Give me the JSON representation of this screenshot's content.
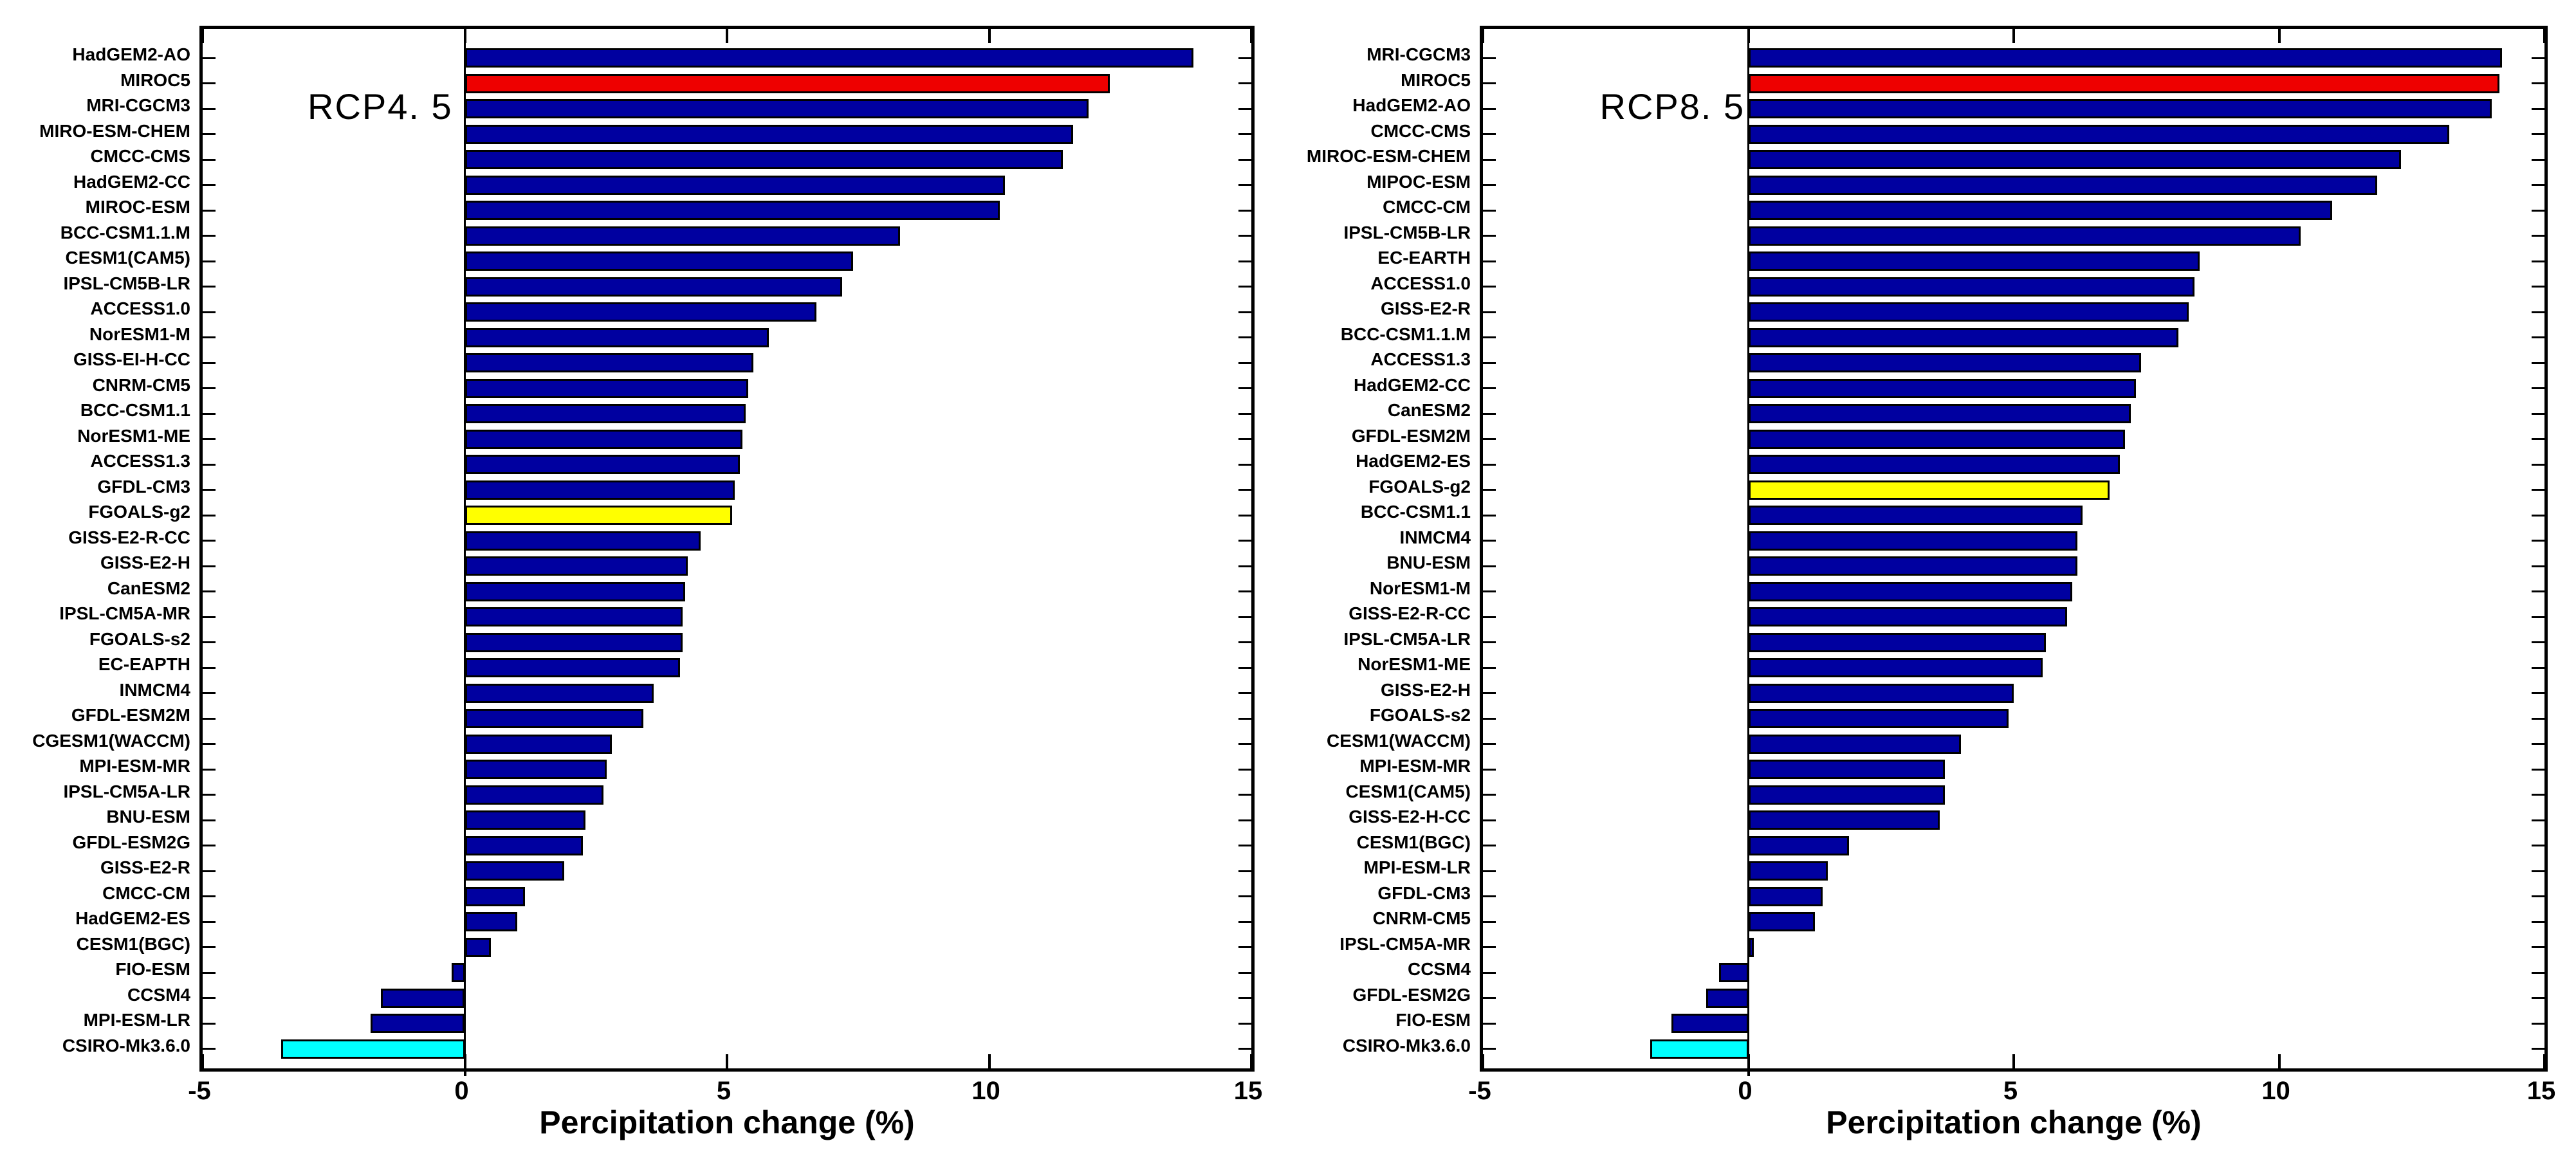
{
  "figure": {
    "background": "#ffffff",
    "bar_default_color": "#0000a0",
    "bar_border_color": "#000000",
    "highlight_colors": {
      "red": "#ee0000",
      "yellow": "#ffff00",
      "cyan": "#00ffff"
    }
  },
  "chart_data": [
    {
      "type": "bar",
      "orientation": "horizontal",
      "title": "RCP4. 5",
      "xlabel": "Percipitation change (%)",
      "xlim": [
        -5,
        15
      ],
      "xticks": [
        -5,
        0,
        5,
        10,
        15
      ],
      "grid": false,
      "legend": "none",
      "categories": [
        "HadGEM2-AO",
        "MIROC5",
        "MRI-CGCM3",
        "MIRO-ESM-CHEM",
        "CMCC-CMS",
        "HadGEM2-CC",
        "MIROC-ESM",
        "BCC-CSM1.1.M",
        "CESM1(CAM5)",
        "IPSL-CM5B-LR",
        "ACCESS1.0",
        "NorESM1-M",
        "GISS-EI-H-CC",
        "CNRM-CM5",
        "BCC-CSM1.1",
        "NorESM1-ME",
        "ACCESS1.3",
        "GFDL-CM3",
        "FGOALS-g2",
        "GISS-E2-R-CC",
        "GISS-E2-H",
        "CanESM2",
        "IPSL-CM5A-MR",
        "FGOALS-s2",
        "EC-EAPTH",
        "INMCM4",
        "GFDL-ESM2M",
        "CGESM1(WACCM)",
        "MPI-ESM-MR",
        "IPSL-CM5A-LR",
        "BNU-ESM",
        "GFDL-ESM2G",
        "GISS-E2-R",
        "CMCC-CM",
        "HadGEM2-ES",
        "CESM1(BGC)",
        "FIO-ESM",
        "CCSM4",
        "MPI-ESM-LR",
        "CSIRO-Mk3.6.0"
      ],
      "values": [
        13.9,
        12.3,
        11.9,
        11.6,
        11.4,
        10.3,
        10.2,
        8.3,
        7.4,
        7.2,
        6.7,
        5.8,
        5.5,
        5.4,
        5.35,
        5.3,
        5.25,
        5.15,
        5.1,
        4.5,
        4.25,
        4.2,
        4.15,
        4.15,
        4.1,
        3.6,
        3.4,
        2.8,
        2.7,
        2.65,
        2.3,
        2.25,
        1.9,
        1.15,
        1.0,
        0.5,
        -0.25,
        -1.6,
        -1.8,
        -3.5
      ],
      "bar_color_overrides": {
        "MIROC5": "#ee0000",
        "FGOALS-g2": "#ffff00",
        "CSIRO-Mk3.6.0": "#00ffff"
      }
    },
    {
      "type": "bar",
      "orientation": "horizontal",
      "title": "RCP8. 5",
      "xlabel": "Percipitation change (%)",
      "xlim": [
        -5,
        15
      ],
      "xticks": [
        -5,
        0,
        5,
        10,
        15
      ],
      "grid": false,
      "legend": "none",
      "categories": [
        "MRI-CGCM3",
        "MIROC5",
        "HadGEM2-AO",
        "CMCC-CMS",
        "MIROC-ESM-CHEM",
        "MIPOC-ESM",
        "CMCC-CM",
        "IPSL-CM5B-LR",
        "EC-EARTH",
        "ACCESS1.0",
        "GISS-E2-R",
        "BCC-CSM1.1.M",
        "ACCESS1.3",
        "HadGEM2-CC",
        "CanESM2",
        "GFDL-ESM2M",
        "HadGEM2-ES",
        "FGOALS-g2",
        "BCC-CSM1.1",
        "INMCM4",
        "BNU-ESM",
        "NorESM1-M",
        "GISS-E2-R-CC",
        "IPSL-CM5A-LR",
        "NorESM1-ME",
        "GISS-E2-H",
        "FGOALS-s2",
        "CESM1(WACCM)",
        "MPI-ESM-MR",
        "CESM1(CAM5)",
        "GISS-E2-H-CC",
        "CESM1(BGC)",
        "MPI-ESM-LR",
        "GFDL-CM3",
        "CNRM-CM5",
        "IPSL-CM5A-MR",
        "CCSM4",
        "GFDL-ESM2G",
        "FIO-ESM",
        "CSIRO-Mk3.6.0"
      ],
      "values": [
        14.2,
        14.15,
        14.0,
        13.2,
        12.3,
        11.85,
        11.0,
        10.4,
        8.5,
        8.4,
        8.3,
        8.1,
        7.4,
        7.3,
        7.2,
        7.1,
        7.0,
        6.8,
        6.3,
        6.2,
        6.2,
        6.1,
        6.0,
        5.6,
        5.55,
        5.0,
        4.9,
        4.0,
        3.7,
        3.7,
        3.6,
        1.9,
        1.5,
        1.4,
        1.25,
        0.1,
        -0.55,
        -0.8,
        -1.45,
        -1.85
      ],
      "bar_color_overrides": {
        "MIROC5": "#ee0000",
        "FGOALS-g2": "#ffff00",
        "CSIRO-Mk3.6.0": "#00ffff"
      }
    }
  ]
}
